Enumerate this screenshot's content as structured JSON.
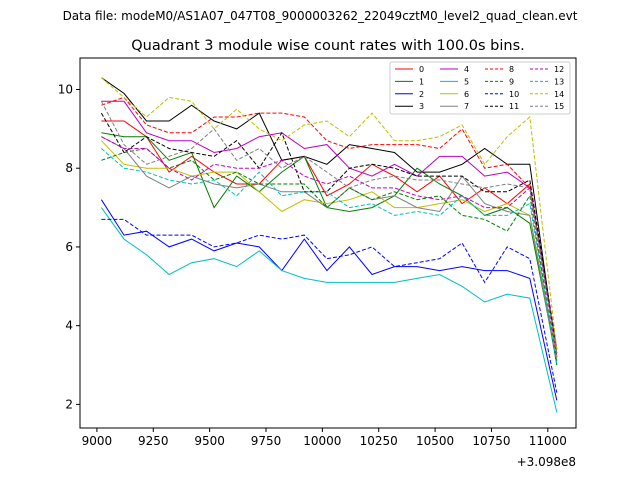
{
  "header": {
    "file_line": "Data file: modeM0/AS1A07_047T08_9000003262_22049cztM0_level2_quad_clean.evt"
  },
  "chart_data": {
    "type": "line",
    "title": "Quadrant 3 module wise count rates with 100.0s bins.",
    "xlabel": "",
    "ylabel": "",
    "x_offset_label": "+3.098e8",
    "xlim": [
      8925,
      11125
    ],
    "ylim": [
      1.4,
      10.8
    ],
    "xticks": [
      9000,
      9250,
      9500,
      9750,
      10000,
      10250,
      10500,
      10750,
      11000
    ],
    "yticks": [
      2,
      4,
      6,
      8,
      10
    ],
    "legend_position": "top-right",
    "x": [
      9020,
      9120,
      9220,
      9320,
      9420,
      9520,
      9620,
      9720,
      9820,
      9920,
      10020,
      10120,
      10220,
      10320,
      10420,
      10520,
      10620,
      10720,
      10820,
      10920,
      11040
    ],
    "series": [
      {
        "name": "0",
        "color": "#ff0000",
        "dash": "solid",
        "values": [
          9.2,
          9.2,
          8.8,
          7.9,
          8.3,
          7.9,
          7.6,
          7.6,
          8.2,
          8.3,
          7.3,
          7.6,
          8.1,
          7.8,
          7.4,
          7.8,
          7.1,
          7.5,
          7.1,
          7.6,
          3.3
        ]
      },
      {
        "name": "1",
        "color": "#008000",
        "dash": "solid",
        "values": [
          8.9,
          8.8,
          8.8,
          8.2,
          8.4,
          7.0,
          7.8,
          7.4,
          7.9,
          8.3,
          7.0,
          6.9,
          7.0,
          7.3,
          8.0,
          7.6,
          7.3,
          6.8,
          7.0,
          6.6,
          3.1
        ]
      },
      {
        "name": "2",
        "color": "#0000ff",
        "dash": "solid",
        "values": [
          7.2,
          6.3,
          6.4,
          6.0,
          6.2,
          5.9,
          6.1,
          6.0,
          5.4,
          6.2,
          5.4,
          6.0,
          5.3,
          5.5,
          5.5,
          5.4,
          5.5,
          5.4,
          5.4,
          5.2,
          2.1
        ]
      },
      {
        "name": "3",
        "color": "#000000",
        "dash": "solid",
        "values": [
          10.3,
          9.9,
          9.2,
          9.2,
          9.6,
          9.2,
          9.0,
          9.4,
          8.2,
          8.3,
          8.1,
          8.6,
          8.5,
          8.4,
          7.9,
          7.9,
          8.1,
          8.5,
          8.1,
          8.1,
          3.2
        ]
      },
      {
        "name": "4",
        "color": "#bf00bf",
        "dash": "solid",
        "values": [
          9.7,
          9.7,
          8.9,
          8.7,
          8.7,
          8.4,
          8.5,
          8.8,
          8.9,
          8.5,
          8.6,
          8.0,
          7.8,
          8.1,
          7.8,
          8.3,
          8.3,
          7.8,
          7.9,
          7.5,
          3.4
        ]
      },
      {
        "name": "5",
        "color": "#00bfbf",
        "dash": "solid",
        "values": [
          7.0,
          6.2,
          5.8,
          5.3,
          5.6,
          5.7,
          5.5,
          5.9,
          5.4,
          5.2,
          5.1,
          5.1,
          5.1,
          5.1,
          5.2,
          5.3,
          5.0,
          4.6,
          4.8,
          4.7,
          1.8
        ]
      },
      {
        "name": "6",
        "color": "#bfbf00",
        "dash": "solid",
        "values": [
          8.7,
          8.1,
          8.0,
          8.0,
          7.8,
          7.9,
          7.9,
          7.4,
          6.9,
          7.2,
          7.1,
          7.2,
          7.4,
          7.0,
          7.0,
          7.1,
          7.2,
          6.9,
          7.1,
          6.8,
          3.2
        ]
      },
      {
        "name": "7",
        "color": "#808080",
        "dash": "solid",
        "values": [
          8.8,
          8.5,
          7.8,
          7.5,
          7.8,
          7.6,
          7.5,
          7.6,
          7.4,
          7.4,
          7.0,
          7.5,
          7.2,
          7.3,
          7.0,
          6.9,
          7.8,
          7.1,
          6.9,
          6.8,
          3.0
        ]
      },
      {
        "name": "8",
        "color": "#ff0000",
        "dash": "dashed",
        "values": [
          9.6,
          9.8,
          9.1,
          8.9,
          8.9,
          9.3,
          9.3,
          9.4,
          9.4,
          9.3,
          8.7,
          8.5,
          8.6,
          8.6,
          8.6,
          8.5,
          9.0,
          8.0,
          8.1,
          7.5,
          3.3
        ]
      },
      {
        "name": "9",
        "color": "#008000",
        "dash": "dashed",
        "values": [
          8.2,
          8.4,
          8.5,
          8.0,
          8.2,
          7.7,
          7.9,
          7.6,
          7.6,
          7.6,
          7.0,
          7.5,
          7.2,
          7.4,
          7.2,
          7.3,
          6.8,
          6.7,
          6.4,
          7.3,
          3.0
        ]
      },
      {
        "name": "10",
        "color": "#0000ff",
        "dash": "dashed",
        "values": [
          6.7,
          6.7,
          6.3,
          6.3,
          6.3,
          6.0,
          6.1,
          6.3,
          6.2,
          6.3,
          5.7,
          5.8,
          6.0,
          5.5,
          5.6,
          5.7,
          6.1,
          5.1,
          6.0,
          5.7,
          2.3
        ]
      },
      {
        "name": "11",
        "color": "#000000",
        "dash": "dashed",
        "values": [
          9.4,
          8.4,
          8.8,
          8.5,
          8.4,
          8.3,
          8.7,
          8.0,
          8.9,
          7.4,
          7.4,
          8.0,
          8.1,
          8.0,
          7.8,
          7.8,
          7.8,
          7.4,
          7.4,
          7.7,
          3.4
        ]
      },
      {
        "name": "12",
        "color": "#bf00bf",
        "dash": "dashed",
        "values": [
          8.8,
          8.5,
          8.5,
          8.0,
          7.7,
          8.1,
          8.0,
          8.0,
          8.2,
          7.8,
          7.6,
          7.8,
          7.5,
          7.5,
          7.3,
          7.2,
          7.3,
          7.0,
          7.0,
          7.5,
          3.2
        ]
      },
      {
        "name": "13",
        "color": "#00bfbf",
        "dash": "dashed",
        "values": [
          8.5,
          8.0,
          7.9,
          7.7,
          7.6,
          7.7,
          7.3,
          7.9,
          7.3,
          7.4,
          7.4,
          7.0,
          7.1,
          6.8,
          6.9,
          6.8,
          7.3,
          6.8,
          6.8,
          7.1,
          3.0
        ]
      },
      {
        "name": "14",
        "color": "#bfbf00",
        "dash": "dashed",
        "values": [
          10.3,
          9.8,
          9.3,
          9.8,
          9.7,
          9.0,
          9.5,
          9.0,
          8.7,
          9.1,
          9.2,
          8.8,
          9.4,
          8.7,
          8.7,
          8.8,
          9.1,
          8.1,
          8.8,
          9.3,
          3.4
        ]
      },
      {
        "name": "15",
        "color": "#808080",
        "dash": "dashed",
        "values": [
          9.7,
          8.6,
          8.1,
          8.3,
          8.5,
          9.0,
          8.2,
          8.5,
          8.0,
          8.3,
          7.9,
          7.5,
          7.7,
          7.8,
          7.7,
          7.7,
          7.6,
          7.5,
          7.6,
          7.5,
          3.3
        ]
      }
    ]
  }
}
